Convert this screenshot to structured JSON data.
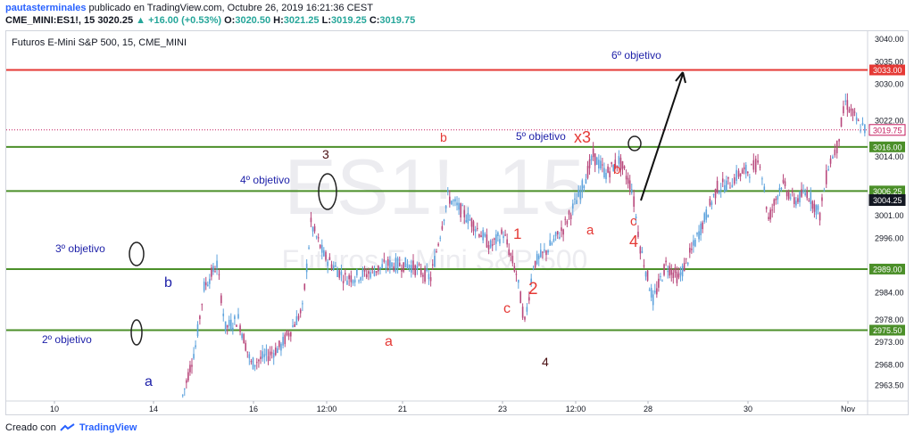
{
  "header": {
    "author": "pautasterminales",
    "published": "publicado en TradingView.com, Octubre 26, 2019 16:21:36 CEST",
    "symbol": "CME_MINI:ES1!, 15",
    "last": "3020.25",
    "change": "▲ +16.00 (+0.53%)",
    "open_label": "O:",
    "open": "3020.50",
    "high_label": "H:",
    "high": "3021.25",
    "low_label": "L:",
    "low": "3019.25",
    "close_label": "C:",
    "close": "3019.75"
  },
  "footer": {
    "created": "Creado con",
    "brand": "TradingView"
  },
  "colors": {
    "resistance": "#e53935",
    "support": "#4b8f29",
    "candle_up": "#5ea3dd",
    "candle_down": "#b8487c",
    "annotation_blue": "#1c1fa8",
    "annotation_red": "#e53935",
    "annotation_dark": "#4a0f12",
    "price_line": "#c2185b"
  },
  "chart_data": {
    "type": "candlestick",
    "title": "Futuros E-Mini S&P 500, 15, CME_MINI",
    "watermark": "ES1!, 15",
    "watermark_sub": "Futuros E-Mini S&P 500",
    "x_ticks": [
      "10",
      "14",
      "16",
      "12:00",
      "21",
      "23",
      "12:00",
      "28",
      "30",
      "Nov"
    ],
    "y_ticks": [
      "3040.00",
      "3035.00",
      "3030.00",
      "3022.00",
      "3014.00",
      "3001.00",
      "2996.00",
      "2984.00",
      "2978.00",
      "2973.00",
      "2968.00",
      "2963.50"
    ],
    "ylim": [
      2961,
      3041
    ],
    "horizontal_levels": [
      {
        "price": 3033.0,
        "label": "3033.00",
        "kind": "resistance"
      },
      {
        "price": 3016.0,
        "label": "3016.00",
        "kind": "support"
      },
      {
        "price": 3006.25,
        "label": "3006.25",
        "kind": "support"
      },
      {
        "price": 2989.0,
        "label": "2989.00",
        "kind": "support"
      },
      {
        "price": 2975.5,
        "label": "2975.50",
        "kind": "support"
      }
    ],
    "price_badges": [
      {
        "price": 3019.75,
        "label": "3019.75",
        "kind": "current"
      },
      {
        "price": 3004.25,
        "label": "3004.25",
        "kind": "dark"
      }
    ],
    "price_path": [
      [
        "13",
        2961
      ],
      [
        "13.3",
        2972
      ],
      [
        "13.5",
        2985
      ],
      [
        "13.8",
        2990
      ],
      [
        "14",
        2976
      ],
      [
        "14.3",
        2978
      ],
      [
        "14.6",
        2968
      ],
      [
        "15",
        2970
      ],
      [
        "15.3",
        2972
      ],
      [
        "15.8",
        2980
      ],
      [
        "16",
        2999
      ],
      [
        "16.3",
        2992
      ],
      [
        "16.8",
        2987
      ],
      [
        "17.3",
        2988
      ],
      [
        "17.8",
        2990
      ],
      [
        "18.3",
        2990
      ],
      [
        "18.8",
        2987
      ],
      [
        "19.2",
        3005
      ],
      [
        "19.5",
        3002
      ],
      [
        "19.8",
        2999
      ],
      [
        "20.2",
        2994
      ],
      [
        "20.5",
        2997
      ],
      [
        "20.8",
        2988
      ],
      [
        "21",
        2977
      ],
      [
        "21.2",
        2990
      ],
      [
        "21.5",
        2993
      ],
      [
        "21.9",
        2998
      ],
      [
        "22.3",
        3006
      ],
      [
        "22.6",
        3014
      ],
      [
        "22.9",
        3010
      ],
      [
        "23.2",
        3013
      ],
      [
        "23.5",
        3007
      ],
      [
        "23.7",
        2994
      ],
      [
        "24",
        2982
      ],
      [
        "24.3",
        2990
      ],
      [
        "24.6",
        2987
      ],
      [
        "24.9",
        2993
      ],
      [
        "25.2",
        3000
      ],
      [
        "25.5",
        3007
      ],
      [
        "25.8",
        3008
      ],
      [
        "26",
        3010
      ],
      [
        "26.3",
        3011
      ],
      [
        "26.5",
        3013
      ],
      [
        "26.7",
        3000
      ],
      [
        "27",
        3008
      ],
      [
        "27.3",
        3004
      ],
      [
        "27.6",
        3006
      ],
      [
        "27.9",
        3001
      ],
      [
        "28.1",
        3012
      ],
      [
        "28.3",
        3016
      ],
      [
        "28.5",
        3026
      ],
      [
        "28.8",
        3021
      ],
      [
        "29",
        3019.75
      ]
    ],
    "annotations": [
      {
        "text": "6º objetivo",
        "color": "blue"
      },
      {
        "text": "5º objetivo",
        "color": "blue"
      },
      {
        "text": "x3",
        "color": "red"
      },
      {
        "text": "4º objetivo",
        "color": "blue"
      },
      {
        "text": "3º objetivo",
        "color": "blue"
      },
      {
        "text": "2º objetivo",
        "color": "blue"
      },
      {
        "text": "3",
        "color": "dark"
      },
      {
        "text": "b",
        "color": "red"
      },
      {
        "text": "b",
        "color": "blue"
      },
      {
        "text": "a",
        "color": "blue"
      },
      {
        "text": "a",
        "color": "red"
      },
      {
        "text": "1",
        "color": "red"
      },
      {
        "text": "2",
        "color": "red"
      },
      {
        "text": "c",
        "color": "red"
      },
      {
        "text": "4",
        "color": "dark"
      },
      {
        "text": "a",
        "color": "red"
      },
      {
        "text": "b",
        "color": "red"
      },
      {
        "text": "c",
        "color": "red"
      },
      {
        "text": "4",
        "color": "red"
      }
    ]
  }
}
